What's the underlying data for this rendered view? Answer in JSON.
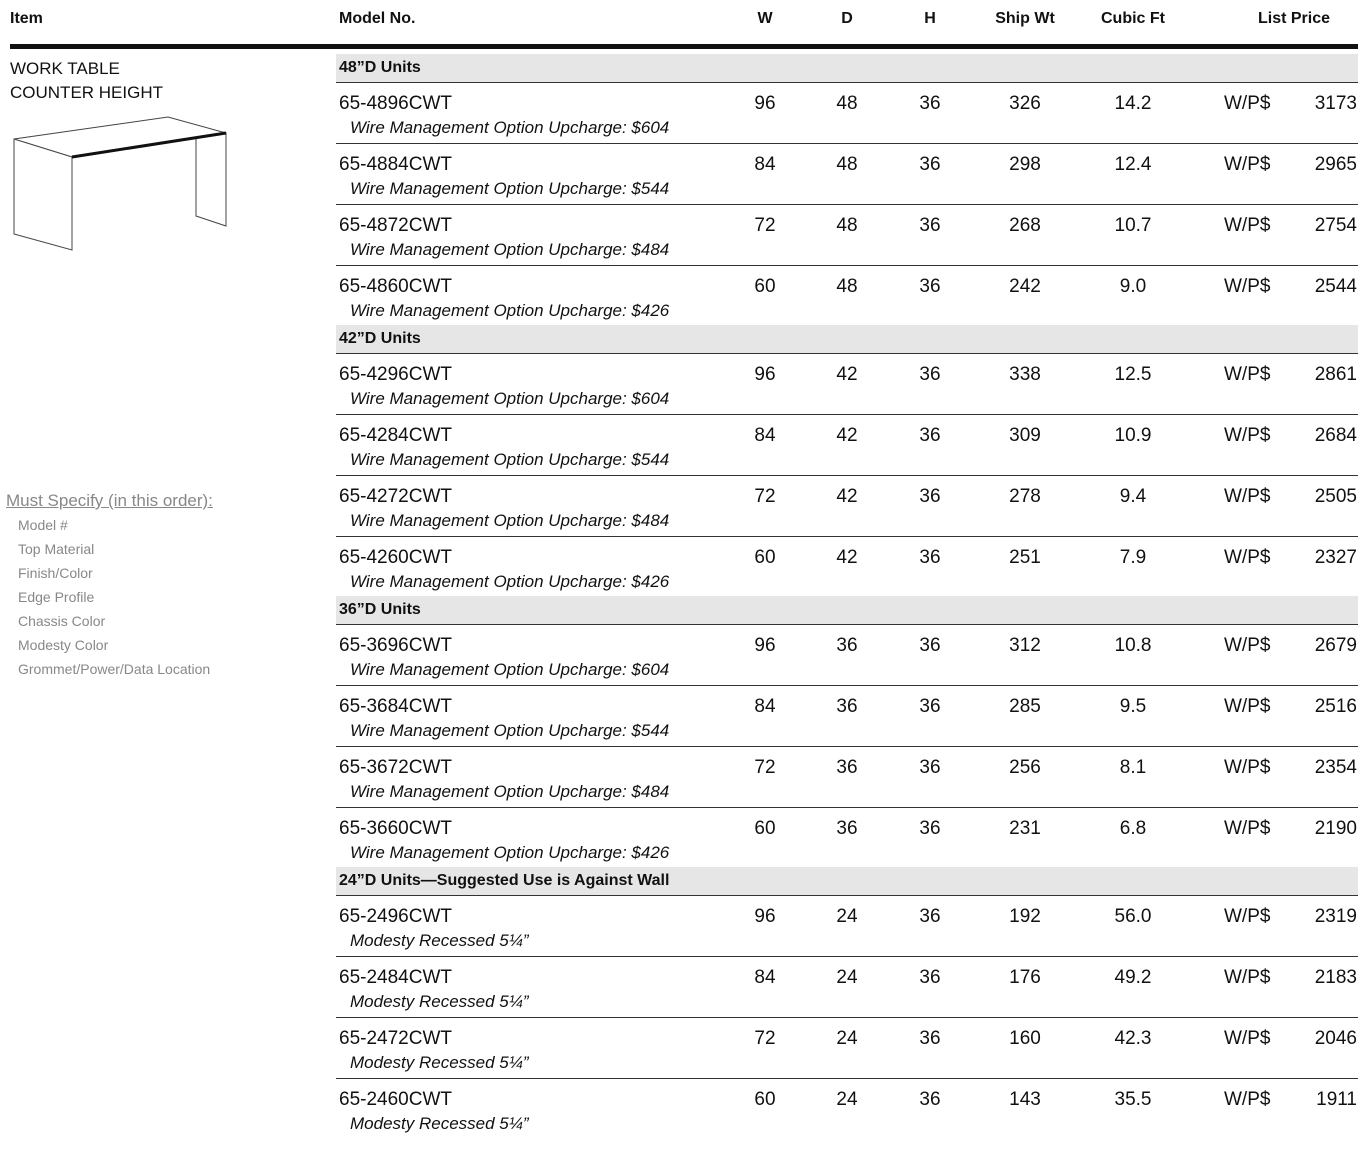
{
  "header": {
    "columns": [
      "Item",
      "Model No.",
      "W",
      "D",
      "H",
      "Ship Wt",
      "Cubic Ft",
      "List Price"
    ]
  },
  "item": {
    "title": [
      "WORK TABLE",
      "COUNTER HEIGHT"
    ],
    "must_specify": {
      "heading": "Must Specify (in this order):",
      "items": [
        "Model #",
        "Top Material",
        "Finish/Color",
        "Edge Profile",
        "Chassis Color",
        "Modesty Color",
        "Grommet/Power/Data Location"
      ]
    }
  },
  "groups": [
    {
      "title": "48”D Units",
      "rows": [
        [
          "65-4896CWT",
          "Wire Management Option Upcharge:  $604",
          "96",
          "48",
          "36",
          "326",
          "14.2",
          "W/P$",
          "3173"
        ],
        [
          "65-4884CWT",
          "Wire Management Option Upcharge:  $544",
          "84",
          "48",
          "36",
          "298",
          "12.4",
          "W/P$",
          "2965"
        ],
        [
          "65-4872CWT",
          "Wire Management Option Upcharge:  $484",
          "72",
          "48",
          "36",
          "268",
          "10.7",
          "W/P$",
          "2754"
        ],
        [
          "65-4860CWT",
          "Wire Management Option Upcharge:  $426",
          "60",
          "48",
          "36",
          "242",
          "9.0",
          "W/P$",
          "2544"
        ]
      ]
    },
    {
      "title": "42”D Units",
      "rows": [
        [
          "65-4296CWT",
          "Wire Management Option Upcharge:  $604",
          "96",
          "42",
          "36",
          "338",
          "12.5",
          "W/P$",
          "2861"
        ],
        [
          "65-4284CWT",
          "Wire Management Option Upcharge:  $544",
          "84",
          "42",
          "36",
          "309",
          "10.9",
          "W/P$",
          "2684"
        ],
        [
          "65-4272CWT",
          "Wire Management Option Upcharge:  $484",
          "72",
          "42",
          "36",
          "278",
          "9.4",
          "W/P$",
          "2505"
        ],
        [
          "65-4260CWT",
          "Wire Management Option Upcharge:  $426",
          "60",
          "42",
          "36",
          "251",
          "7.9",
          "W/P$",
          "2327"
        ]
      ]
    },
    {
      "title": "36”D Units",
      "rows": [
        [
          "65-3696CWT",
          "Wire Management Option Upcharge:  $604",
          "96",
          "36",
          "36",
          "312",
          "10.8",
          "W/P$",
          "2679"
        ],
        [
          "65-3684CWT",
          "Wire Management Option Upcharge:  $544",
          "84",
          "36",
          "36",
          "285",
          "9.5",
          "W/P$",
          "2516"
        ],
        [
          "65-3672CWT",
          "Wire Management Option Upcharge:  $484",
          "72",
          "36",
          "36",
          "256",
          "8.1",
          "W/P$",
          "2354"
        ],
        [
          "65-3660CWT",
          "Wire Management Option Upcharge:  $426",
          "60",
          "36",
          "36",
          "231",
          "6.8",
          "W/P$",
          "2190"
        ]
      ]
    },
    {
      "title": "24”D Units—Suggested Use is Against Wall",
      "rows": [
        [
          "65-2496CWT",
          "Modesty Recessed 5¼”",
          "96",
          "24",
          "36",
          "192",
          "56.0",
          "W/P$",
          "2319"
        ],
        [
          "65-2484CWT",
          "Modesty Recessed 5¼”",
          "84",
          "24",
          "36",
          "176",
          "49.2",
          "W/P$",
          "2183"
        ],
        [
          "65-2472CWT",
          "Modesty Recessed 5¼”",
          "72",
          "24",
          "36",
          "160",
          "42.3",
          "W/P$",
          "2046"
        ],
        [
          "65-2460CWT",
          "Modesty Recessed 5¼”",
          "60",
          "24",
          "36",
          "143",
          "35.5",
          "W/P$",
          "1911"
        ]
      ]
    }
  ]
}
